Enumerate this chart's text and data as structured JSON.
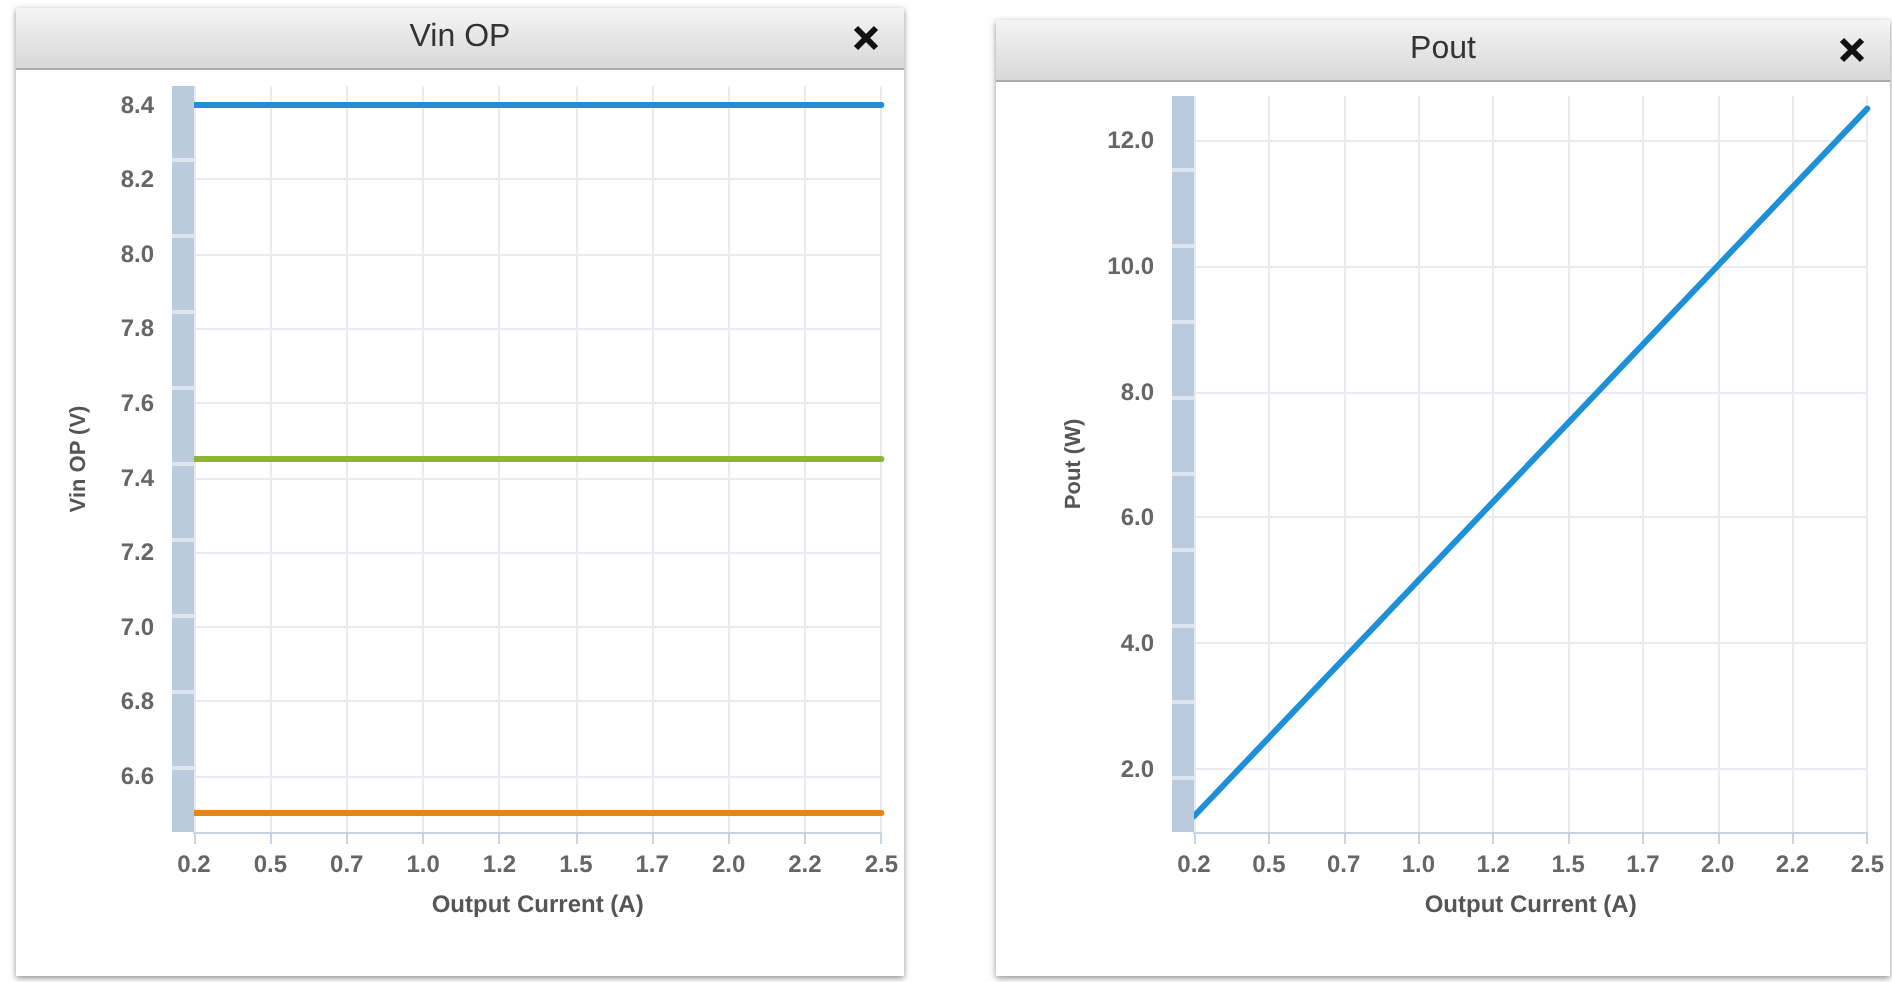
{
  "chart_data": [
    {
      "type": "line",
      "title": "Vin OP",
      "xlabel": "Output Current (A)",
      "ylabel": "Vin OP (V)",
      "ref_lines": [
        {
          "axis": "y",
          "value": 8.4,
          "color": "#1e90d8",
          "line_style": "solid"
        },
        {
          "axis": "y",
          "value": 7.45,
          "color": "#8db33a",
          "line_style": "solid"
        },
        {
          "axis": "y",
          "value": 6.5,
          "color": "#ef8210",
          "line_style": "solid"
        }
      ],
      "xlim": [
        0.25,
        2.5
      ],
      "xticks": [
        {
          "value": 0.25,
          "label": "0.2"
        },
        0.5,
        {
          "value": 0.75,
          "label": "0.7"
        },
        {
          "value": 1,
          "label": "1.0"
        },
        {
          "value": 1.25,
          "label": "1.2"
        },
        1.5,
        {
          "value": 1.75,
          "label": "1.7"
        },
        {
          "value": 2,
          "label": "2.0"
        },
        {
          "value": 2.25,
          "label": "2.2"
        },
        2.5
      ],
      "ylim": [
        6.45,
        8.45
      ],
      "yticks": [
        6.6,
        6.8,
        {
          "value": 7,
          "label": "7.0"
        },
        7.2,
        7.4,
        7.6,
        7.8,
        {
          "value": 8,
          "label": "8.0"
        },
        8.2,
        8.4
      ],
      "grid": true
    },
    {
      "type": "line",
      "title": "Pout",
      "xlabel": "Output Current (A)",
      "ylabel": "Pout (W)",
      "x": [
        0.25,
        2.5
      ],
      "series": [
        {
          "color": "#1e90d8",
          "values": [
            1.25,
            12.5
          ]
        }
      ],
      "xlim": [
        0.25,
        2.5
      ],
      "xticks": [
        {
          "value": 0.25,
          "label": "0.2"
        },
        0.5,
        {
          "value": 0.75,
          "label": "0.7"
        },
        {
          "value": 1,
          "label": "1.0"
        },
        {
          "value": 1.25,
          "label": "1.2"
        },
        1.5,
        {
          "value": 1.75,
          "label": "1.7"
        },
        {
          "value": 2,
          "label": "2.0"
        },
        {
          "value": 2.25,
          "label": "2.2"
        },
        2.5
      ],
      "ylim": [
        1,
        12.7
      ],
      "yticks": [
        {
          "value": 2,
          "label": "2.0"
        },
        {
          "value": 4,
          "label": "4.0"
        },
        {
          "value": 6,
          "label": "6.0"
        },
        {
          "value": 8,
          "label": "8.0"
        },
        {
          "value": 10,
          "label": "10.0"
        },
        {
          "value": 12,
          "label": "12.0"
        }
      ],
      "grid": true,
      "marker": "none",
      "line_style": "solid"
    }
  ]
}
